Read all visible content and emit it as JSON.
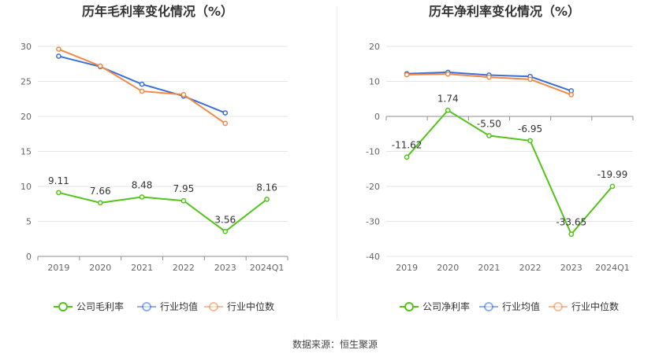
{
  "source": "数据来源：恒生聚源",
  "chart_data": [
    {
      "type": "line",
      "title": "历年毛利率变化情况（%）",
      "categories": [
        "2019",
        "2020",
        "2021",
        "2022",
        "2023",
        "2024Q1"
      ],
      "ylim": [
        0,
        30
      ],
      "yticks": [
        0,
        5,
        10,
        15,
        20,
        25,
        30
      ],
      "grid": true,
      "legend_position": "bottom",
      "series": [
        {
          "name": "公司毛利率",
          "color": "#52c41a",
          "values": [
            9.11,
            7.66,
            8.48,
            7.95,
            3.56,
            8.16
          ],
          "labels": [
            "9.11",
            "7.66",
            "8.48",
            "7.95",
            "3.56",
            "8.16"
          ]
        },
        {
          "name": "行业均值",
          "color": "#3a6fd8",
          "values": [
            28.6,
            27.1,
            24.6,
            22.9,
            20.5,
            null
          ]
        },
        {
          "name": "行业中位数",
          "color": "#f08a4b",
          "values": [
            29.6,
            27.2,
            23.6,
            23.1,
            19.0,
            null
          ]
        }
      ]
    },
    {
      "type": "line",
      "title": "历年净利率变化情况（%）",
      "categories": [
        "2019",
        "2020",
        "2021",
        "2022",
        "2023",
        "2024Q1"
      ],
      "ylim": [
        -40,
        20
      ],
      "yticks": [
        -40,
        -30,
        -20,
        -10,
        0,
        10,
        20
      ],
      "grid": true,
      "legend_position": "bottom",
      "series": [
        {
          "name": "公司净利率",
          "color": "#52c41a",
          "values": [
            -11.62,
            1.74,
            -5.5,
            -6.95,
            -33.65,
            -19.99
          ],
          "labels": [
            "-11.62",
            "1.74",
            "-5.50",
            "-6.95",
            "-33.65",
            "-19.99"
          ]
        },
        {
          "name": "行业均值",
          "color": "#3a6fd8",
          "values": [
            12.2,
            12.6,
            11.8,
            11.4,
            7.3,
            null
          ]
        },
        {
          "name": "行业中位数",
          "color": "#f08a4b",
          "values": [
            11.9,
            12.1,
            11.2,
            10.6,
            6.2,
            null
          ]
        }
      ]
    }
  ]
}
